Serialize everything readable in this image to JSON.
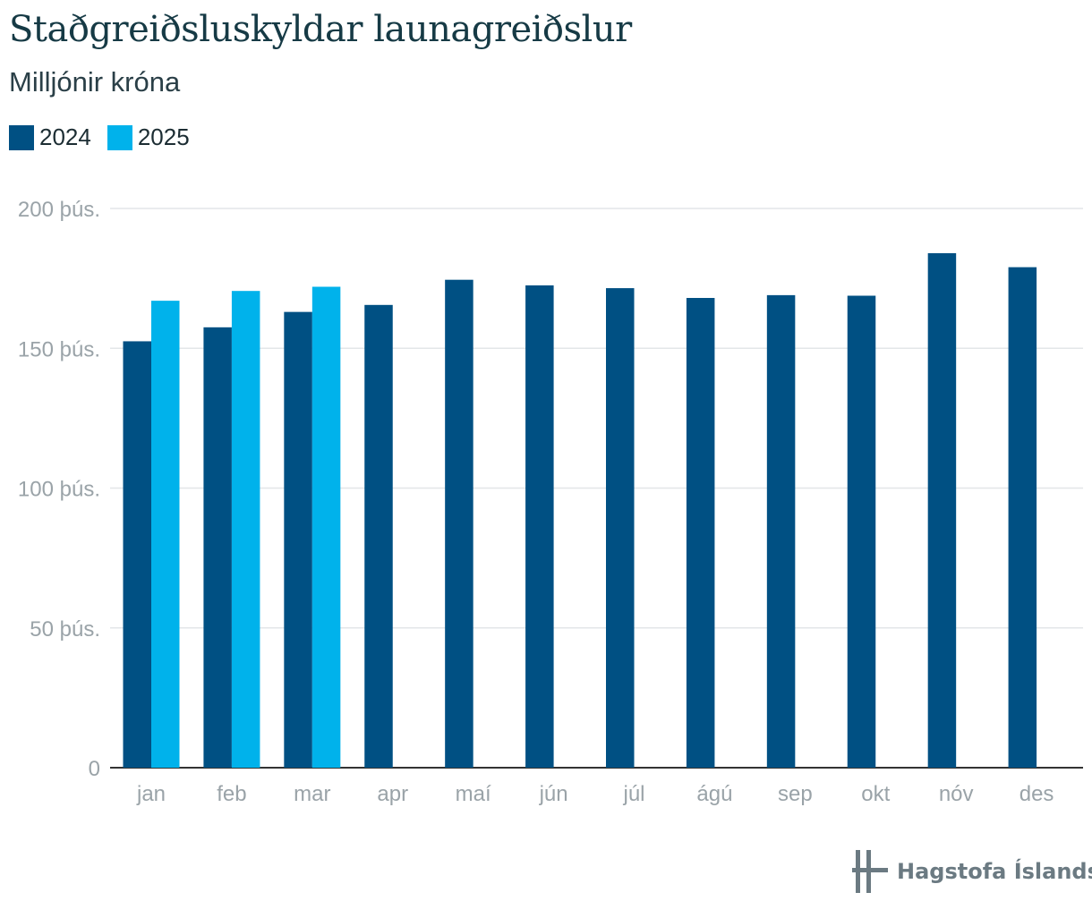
{
  "title": "Staðgreiðsluskyldar launagreiðslur",
  "subtitle": "Milljónir króna",
  "logo_text": "Hagstofa Íslands",
  "colors": {
    "s2024": "#005083",
    "s2025": "#00b2eb",
    "grid": "#e3e6e8",
    "axis": "#333333",
    "logo": "#6b7a82"
  },
  "chart_data": {
    "type": "bar",
    "title": "Staðgreiðsluskyldar launagreiðslur",
    "subtitle": "Milljónir króna",
    "categories": [
      "jan",
      "feb",
      "mar",
      "apr",
      "maí",
      "jún",
      "júl",
      "ágú",
      "sep",
      "okt",
      "nóv",
      "des"
    ],
    "series": [
      {
        "name": "2024",
        "color": "#005083",
        "values": [
          152500,
          157500,
          163000,
          165500,
          174500,
          172500,
          171500,
          168000,
          169000,
          168800,
          184000,
          179000
        ]
      },
      {
        "name": "2025",
        "color": "#00b2eb",
        "values": [
          167000,
          170500,
          172000,
          null,
          null,
          null,
          null,
          null,
          null,
          null,
          null,
          null
        ]
      }
    ],
    "yticks": [
      {
        "value": 0,
        "label": "0"
      },
      {
        "value": 50000,
        "label": "50 þús."
      },
      {
        "value": 100000,
        "label": "100 þús."
      },
      {
        "value": 150000,
        "label": "150 þús."
      },
      {
        "value": 200000,
        "label": "200 þús."
      }
    ],
    "ylim": [
      0,
      200000
    ],
    "grid": true,
    "legend_position": "top-left"
  }
}
